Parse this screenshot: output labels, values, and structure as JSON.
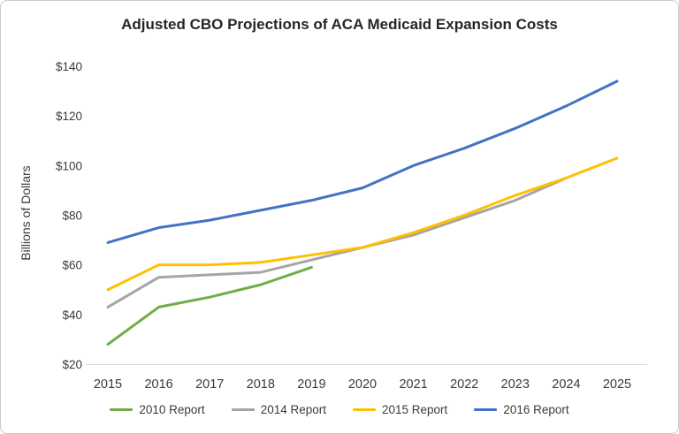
{
  "chart_data": {
    "type": "line",
    "title": "Adjusted CBO Projections of ACA Medicaid Expansion Costs",
    "xlabel": "",
    "ylabel": "Billions of Dollars",
    "x": [
      2015,
      2016,
      2017,
      2018,
      2019,
      2020,
      2021,
      2022,
      2023,
      2024,
      2025
    ],
    "ylim": [
      20,
      140
    ],
    "ytick_step": 20,
    "ytick_prefix": "$",
    "grid": false,
    "legend_position": "bottom",
    "series": [
      {
        "name": "2010 Report",
        "color": "#70AD47",
        "values": [
          28,
          43,
          47,
          52,
          59,
          null,
          null,
          null,
          null,
          null,
          null
        ]
      },
      {
        "name": "2014 Report",
        "color": "#A5A5A5",
        "values": [
          43,
          55,
          56,
          57,
          62,
          67,
          72,
          79,
          86,
          95,
          null
        ]
      },
      {
        "name": "2015 Report",
        "color": "#FFC000",
        "values": [
          50,
          60,
          60,
          61,
          64,
          67,
          73,
          80,
          88,
          95,
          103
        ]
      },
      {
        "name": "2016 Report",
        "color": "#4472C4",
        "values": [
          69,
          75,
          78,
          82,
          86,
          91,
          100,
          107,
          115,
          124,
          134
        ]
      }
    ],
    "axis_color": "#d9d9d9"
  }
}
